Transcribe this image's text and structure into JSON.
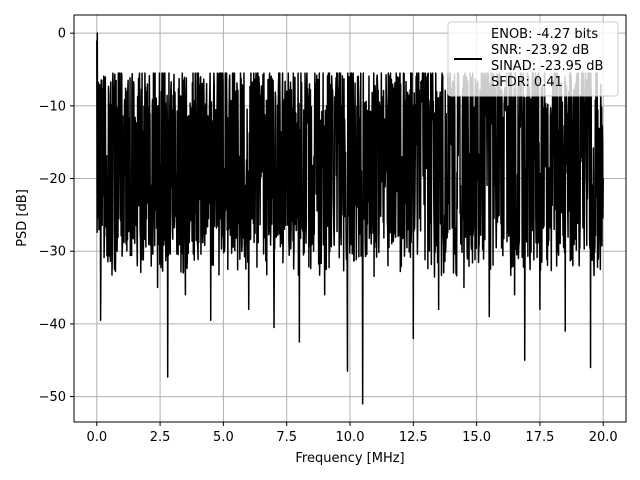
{
  "chart_data": {
    "type": "line",
    "xlabel": "Frequency [MHz]",
    "ylabel": "PSD [dB]",
    "xlim": [
      -0.9,
      20.9
    ],
    "ylim": [
      -53.5,
      2.5
    ],
    "xticks": [
      0.0,
      2.5,
      5.0,
      7.5,
      10.0,
      12.5,
      15.0,
      17.5,
      20.0
    ],
    "xtick_labels": [
      "0.0",
      "2.5",
      "5.0",
      "7.5",
      "10.0",
      "12.5",
      "15.0",
      "17.5",
      "20.0"
    ],
    "yticks": [
      0,
      -10,
      -20,
      -30,
      -40,
      -50
    ],
    "ytick_labels": [
      "0",
      "−10",
      "−20",
      "−30",
      "−40",
      "−50"
    ],
    "grid": true,
    "legend_position": "top-right",
    "legend_lines": [
      "ENOB: -4.27 bits",
      "SNR: -23.92 dB",
      "SINAD: -23.95 dB",
      "SFDR: 0.41"
    ],
    "series": [
      {
        "color": "#000000",
        "x": [
          0.0,
          0.02,
          0.05,
          0.1,
          0.15,
          0.2,
          0.3,
          0.5,
          0.8,
          1.2,
          1.6,
          2.0,
          2.4,
          2.8,
          3.1,
          3.5,
          4.1,
          4.5,
          5.0,
          5.5,
          6.0,
          6.4,
          7.0,
          7.5,
          8.0,
          8.4,
          9.0,
          9.6,
          9.9,
          10.3,
          10.5,
          11.0,
          11.5,
          12.0,
          12.5,
          13.0,
          13.5,
          14.0,
          14.5,
          15.0,
          15.5,
          16.0,
          16.5,
          16.9,
          17.5,
          18.0,
          18.5,
          18.9,
          19.5,
          20.0
        ],
        "y": [
          -1.0,
          0.0,
          -18.0,
          -10.0,
          -39.5,
          -6.5,
          -28.0,
          -12.0,
          -30.0,
          -8.0,
          -32.0,
          -7.0,
          -35.0,
          -47.3,
          -12.0,
          -36.0,
          -6.0,
          -39.5,
          -28.0,
          -8.0,
          -38.0,
          -6.0,
          -40.5,
          -8.0,
          -42.5,
          -7.0,
          -36.0,
          -8.0,
          -46.5,
          -6.0,
          -51.0,
          -8.0,
          -32.0,
          -7.0,
          -42.0,
          -6.0,
          -38.0,
          -9.0,
          -35.0,
          -7.0,
          -39.0,
          -8.0,
          -36.0,
          -45.0,
          -38.0,
          -8.0,
          -41.0,
          -7.0,
          -46.0,
          -20.0
        ]
      }
    ]
  }
}
